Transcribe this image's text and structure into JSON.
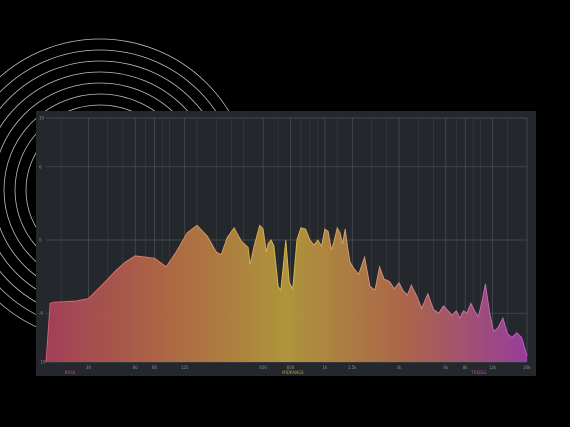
{
  "chart_data": {
    "type": "area",
    "title": "",
    "xlabel": "",
    "ylabel": "",
    "x_scale": "log",
    "xlim": [
      16,
      20000
    ],
    "ylim": [
      -10,
      10
    ],
    "grid": true,
    "x_ticks": [
      {
        "value": 30,
        "label": "30"
      },
      {
        "value": 60,
        "label": "60"
      },
      {
        "value": 80,
        "label": "80"
      },
      {
        "value": 125,
        "label": "125"
      },
      {
        "value": 400,
        "label": "400"
      },
      {
        "value": 600,
        "label": "600"
      },
      {
        "value": 1000,
        "label": "1k"
      },
      {
        "value": 1500,
        "label": "1.5k"
      },
      {
        "value": 3000,
        "label": "3k"
      },
      {
        "value": 6000,
        "label": "6k"
      },
      {
        "value": 8000,
        "label": "8k"
      },
      {
        "value": 12000,
        "label": "12k"
      },
      {
        "value": 20000,
        "label": "20k"
      }
    ],
    "y_ticks": [
      {
        "value": 10,
        "label": "10"
      },
      {
        "value": 6,
        "label": "6"
      },
      {
        "value": 0,
        "label": "0"
      },
      {
        "value": -6,
        "label": "-6"
      },
      {
        "value": -10,
        "label": "-10"
      }
    ],
    "band_labels": [
      {
        "text": "BASS",
        "color": "#c0506a"
      },
      {
        "text": "MIDRANGE",
        "color": "#b89a3a"
      },
      {
        "text": "TREBLE",
        "color": "#b04ab0"
      }
    ],
    "series": [
      {
        "x": [
          16,
          17,
          18,
          25,
          30,
          38,
          45,
          52,
          60,
          70,
          80,
          95,
          110,
          130,
          150,
          175,
          200,
          215,
          235,
          260,
          290,
          320,
          330,
          350,
          380,
          400,
          420,
          430,
          450,
          470,
          500,
          520,
          540,
          560,
          590,
          620,
          640,
          660,
          700,
          750,
          800,
          850,
          900,
          950,
          1000,
          1050,
          1100,
          1150,
          1200,
          1250,
          1300,
          1350,
          1400,
          1450,
          1550,
          1650,
          1800,
          1950,
          2100,
          2250,
          2400,
          2600,
          2800,
          3000,
          3200,
          3400,
          3600,
          3900,
          4200,
          4600,
          5000,
          5400,
          5800,
          6200,
          6600,
          7000,
          7400,
          7800,
          8200,
          8700,
          9200,
          9700,
          10200,
          10800,
          11500,
          12200,
          13000,
          14000,
          15000,
          16000,
          17200,
          18500,
          20000
        ],
        "y": [
          -10,
          -5.2,
          -5.1,
          -5.0,
          -4.8,
          -3.5,
          -2.5,
          -1.8,
          -1.3,
          -1.4,
          -1.5,
          -2.2,
          -1.0,
          0.6,
          1.2,
          0.3,
          -1.0,
          -1.2,
          0.2,
          1.0,
          -0.1,
          -0.6,
          -2.0,
          -0.5,
          1.2,
          0.9,
          -1.0,
          -0.3,
          0.0,
          -0.5,
          -3.8,
          -4.1,
          -2.0,
          0.0,
          -3.5,
          -4.0,
          -2.0,
          0.0,
          1.0,
          0.9,
          0.0,
          -0.4,
          0.0,
          -0.5,
          0.9,
          0.7,
          -0.8,
          0.0,
          1.0,
          0.6,
          -0.3,
          0.9,
          -0.6,
          -1.8,
          -2.4,
          -2.8,
          -1.4,
          -3.8,
          -4.1,
          -2.2,
          -3.2,
          -3.4,
          -4.0,
          -3.5,
          -4.2,
          -4.5,
          -3.7,
          -4.6,
          -5.6,
          -4.4,
          -5.7,
          -6.0,
          -5.4,
          -5.8,
          -6.2,
          -5.8,
          -6.4,
          -5.8,
          -6.0,
          -5.2,
          -5.8,
          -6.3,
          -5.2,
          -3.6,
          -6.0,
          -7.5,
          -7.2,
          -6.4,
          -7.7,
          -8.0,
          -7.6,
          -8.0,
          -9.5
        ]
      }
    ]
  }
}
